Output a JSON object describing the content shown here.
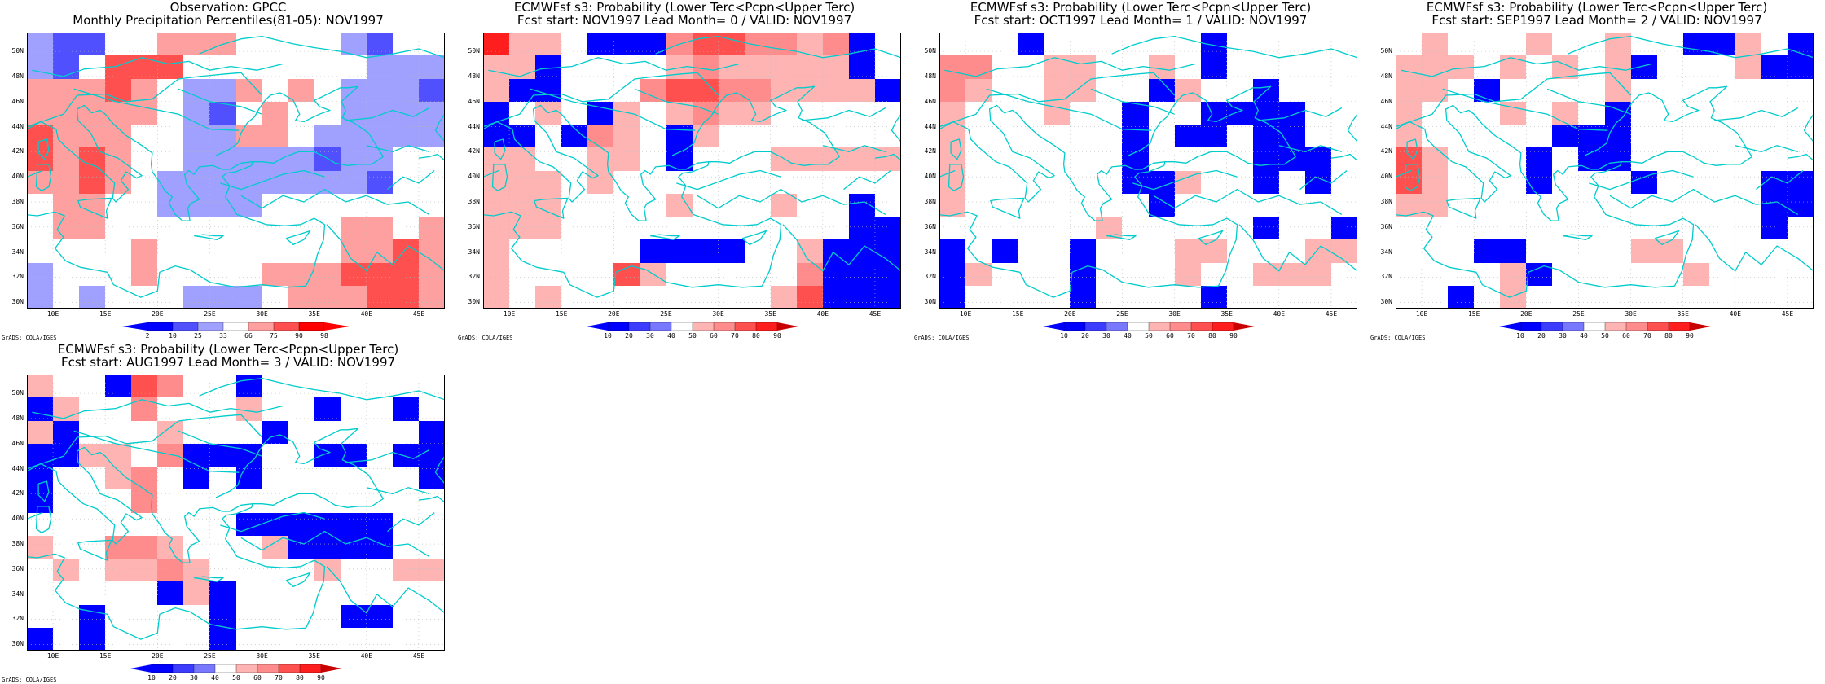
{
  "lat_ticks": [
    "30N",
    "32N",
    "34N",
    "36N",
    "38N",
    "40N",
    "42N",
    "44N",
    "46N",
    "48N",
    "50N"
  ],
  "lon_ticks": [
    "10E",
    "15E",
    "20E",
    "25E",
    "30E",
    "35E",
    "40E",
    "45E"
  ],
  "credit": "GrADS: COLA/IGES",
  "colors": {
    "coastline": "#00cccc",
    "grid": "#bbbbbb",
    "obs_palette": [
      "#0000ff",
      "#5050ff",
      "#a0a0ff",
      "#ffffff",
      "#ffa0a0",
      "#ff5050",
      "#ff0000"
    ],
    "prob_palette": [
      "#0000ff",
      "#3c3cff",
      "#7878ff",
      "#ffffff",
      "#ffb4b4",
      "#ff8c8c",
      "#ff5050",
      "#ff1e1e",
      "#c80000"
    ]
  },
  "panels": [
    {
      "title_line1": "Observation: GPCC",
      "title_line2": "Monthly Precipitation Percentiles(81-05): NOV1997",
      "colorbar_labels": [
        "2",
        "10",
        "25",
        "33",
        "66",
        "75",
        "90",
        "98"
      ],
      "colorbar_type": "obs",
      "grid": [
        [
          2,
          1,
          1,
          3,
          3,
          4,
          4,
          4,
          3,
          3,
          3,
          3,
          2,
          1,
          3,
          3
        ],
        [
          2,
          1,
          3,
          5,
          5,
          5,
          3,
          3,
          3,
          3,
          3,
          3,
          3,
          2,
          2,
          2
        ],
        [
          4,
          4,
          4,
          5,
          4,
          3,
          2,
          2,
          4,
          3,
          4,
          3,
          2,
          2,
          2,
          1
        ],
        [
          4,
          4,
          4,
          4,
          4,
          3,
          2,
          1,
          3,
          4,
          3,
          3,
          2,
          2,
          2,
          2
        ],
        [
          5,
          4,
          4,
          4,
          3,
          3,
          2,
          2,
          4,
          4,
          3,
          2,
          2,
          2,
          2,
          2
        ],
        [
          5,
          4,
          5,
          4,
          3,
          3,
          2,
          2,
          2,
          2,
          2,
          1,
          2,
          2,
          3,
          3
        ],
        [
          4,
          4,
          5,
          4,
          3,
          2,
          2,
          2,
          2,
          2,
          2,
          2,
          2,
          1,
          3,
          3
        ],
        [
          3,
          4,
          4,
          3,
          3,
          2,
          2,
          2,
          2,
          3,
          3,
          3,
          3,
          3,
          3,
          3
        ],
        [
          3,
          4,
          4,
          3,
          3,
          3,
          3,
          3,
          3,
          3,
          3,
          3,
          4,
          4,
          3,
          4
        ],
        [
          3,
          3,
          3,
          3,
          4,
          3,
          3,
          3,
          3,
          3,
          3,
          3,
          4,
          4,
          5,
          4
        ],
        [
          2,
          3,
          3,
          3,
          4,
          3,
          3,
          3,
          3,
          4,
          4,
          4,
          5,
          5,
          5,
          4
        ],
        [
          2,
          3,
          2,
          3,
          3,
          3,
          2,
          2,
          2,
          3,
          4,
          4,
          4,
          5,
          5,
          4
        ]
      ]
    },
    {
      "title_line1": "ECMWFsf s3: Probability (Lower Terc<Pcpn<Upper Terc)",
      "title_line2": "Fcst start: NOV1997  Lead Month= 0 / VALID: NOV1997",
      "colorbar_labels": [
        "10",
        "20",
        "30",
        "40",
        "50",
        "60",
        "70",
        "80",
        "90"
      ],
      "colorbar_type": "prob",
      "grid": [
        [
          7,
          4,
          4,
          3,
          0,
          0,
          0,
          5,
          6,
          6,
          5,
          5,
          4,
          5,
          0,
          3
        ],
        [
          4,
          4,
          0,
          3,
          3,
          3,
          3,
          4,
          5,
          4,
          4,
          4,
          4,
          4,
          0,
          3
        ],
        [
          4,
          0,
          0,
          3,
          3,
          3,
          5,
          6,
          6,
          5,
          5,
          4,
          4,
          4,
          4,
          0
        ],
        [
          0,
          3,
          4,
          3,
          0,
          4,
          3,
          4,
          5,
          4,
          4,
          3,
          3,
          3,
          3,
          3
        ],
        [
          0,
          0,
          3,
          0,
          5,
          4,
          3,
          0,
          4,
          3,
          3,
          3,
          3,
          3,
          3,
          3
        ],
        [
          4,
          4,
          3,
          3,
          4,
          4,
          3,
          0,
          3,
          3,
          3,
          4,
          4,
          4,
          4,
          4
        ],
        [
          4,
          4,
          4,
          3,
          4,
          3,
          3,
          3,
          3,
          3,
          3,
          3,
          3,
          3,
          3,
          3
        ],
        [
          4,
          4,
          4,
          3,
          3,
          3,
          3,
          4,
          3,
          3,
          3,
          4,
          3,
          3,
          0,
          3
        ],
        [
          4,
          4,
          4,
          3,
          3,
          3,
          3,
          3,
          3,
          3,
          3,
          3,
          3,
          3,
          0,
          0
        ],
        [
          4,
          3,
          3,
          3,
          3,
          3,
          0,
          0,
          0,
          0,
          3,
          3,
          4,
          0,
          0,
          0
        ],
        [
          4,
          3,
          3,
          3,
          3,
          6,
          4,
          3,
          3,
          3,
          3,
          3,
          5,
          0,
          0,
          0
        ],
        [
          4,
          3,
          4,
          3,
          3,
          3,
          3,
          3,
          3,
          3,
          3,
          4,
          6,
          0,
          0,
          0
        ]
      ]
    },
    {
      "title_line1": "ECMWFsf s3: Probability (Lower Terc<Pcpn<Upper Terc)",
      "title_line2": "Fcst start: OCT1997  Lead Month= 1 / VALID: NOV1997",
      "colorbar_labels": [
        "10",
        "20",
        "30",
        "40",
        "50",
        "60",
        "70",
        "80",
        "90"
      ],
      "colorbar_type": "prob",
      "grid": [
        [
          3,
          3,
          3,
          0,
          3,
          3,
          3,
          3,
          3,
          3,
          0,
          3,
          3,
          3,
          3,
          3
        ],
        [
          5,
          5,
          3,
          3,
          4,
          4,
          3,
          3,
          4,
          3,
          0,
          3,
          3,
          3,
          3,
          3
        ],
        [
          5,
          4,
          3,
          3,
          4,
          4,
          3,
          3,
          0,
          4,
          3,
          3,
          0,
          3,
          3,
          3
        ],
        [
          4,
          3,
          3,
          3,
          4,
          3,
          3,
          0,
          3,
          3,
          0,
          0,
          0,
          0,
          3,
          3
        ],
        [
          4,
          3,
          3,
          3,
          3,
          3,
          3,
          0,
          3,
          0,
          0,
          3,
          0,
          0,
          3,
          3
        ],
        [
          4,
          3,
          3,
          3,
          3,
          3,
          3,
          0,
          3,
          3,
          3,
          3,
          0,
          0,
          0,
          3
        ],
        [
          4,
          3,
          3,
          3,
          3,
          3,
          3,
          0,
          0,
          4,
          3,
          3,
          0,
          3,
          0,
          3
        ],
        [
          4,
          3,
          3,
          3,
          3,
          3,
          3,
          3,
          0,
          3,
          3,
          3,
          3,
          3,
          3,
          3
        ],
        [
          3,
          3,
          3,
          3,
          3,
          3,
          4,
          3,
          3,
          3,
          3,
          3,
          0,
          3,
          3,
          0
        ],
        [
          0,
          3,
          0,
          3,
          3,
          0,
          3,
          3,
          3,
          4,
          4,
          3,
          3,
          3,
          4,
          4
        ],
        [
          0,
          4,
          3,
          3,
          3,
          0,
          3,
          3,
          3,
          4,
          3,
          3,
          4,
          4,
          4,
          3
        ],
        [
          0,
          3,
          3,
          3,
          3,
          0,
          3,
          3,
          3,
          3,
          0,
          3,
          3,
          3,
          3,
          3
        ]
      ]
    },
    {
      "title_line1": "ECMWFsf s3: Probability (Lower Terc<Pcpn<Upper Terc)",
      "title_line2": "Fcst start: SEP1997  Lead Month= 2 / VALID: NOV1997",
      "colorbar_labels": [
        "10",
        "20",
        "30",
        "40",
        "50",
        "60",
        "70",
        "80",
        "90"
      ],
      "colorbar_type": "prob",
      "grid": [
        [
          3,
          4,
          3,
          3,
          3,
          4,
          3,
          3,
          4,
          3,
          3,
          0,
          0,
          4,
          3,
          0
        ],
        [
          4,
          4,
          4,
          3,
          4,
          3,
          4,
          3,
          4,
          0,
          3,
          3,
          3,
          4,
          0,
          0
        ],
        [
          4,
          4,
          3,
          0,
          3,
          3,
          3,
          3,
          4,
          3,
          3,
          3,
          3,
          3,
          3,
          3
        ],
        [
          4,
          3,
          3,
          3,
          4,
          3,
          4,
          3,
          0,
          3,
          3,
          3,
          3,
          3,
          3,
          3
        ],
        [
          4,
          3,
          3,
          3,
          3,
          3,
          0,
          0,
          0,
          3,
          3,
          3,
          3,
          3,
          3,
          3
        ],
        [
          6,
          4,
          3,
          3,
          3,
          0,
          3,
          0,
          0,
          3,
          3,
          3,
          3,
          3,
          3,
          3
        ],
        [
          6,
          4,
          3,
          3,
          3,
          0,
          3,
          3,
          3,
          0,
          3,
          3,
          3,
          3,
          0,
          0
        ],
        [
          4,
          4,
          3,
          3,
          3,
          3,
          3,
          3,
          3,
          3,
          3,
          3,
          3,
          3,
          0,
          0
        ],
        [
          3,
          3,
          3,
          3,
          3,
          3,
          3,
          3,
          3,
          3,
          3,
          3,
          3,
          3,
          0,
          3
        ],
        [
          3,
          3,
          3,
          0,
          0,
          3,
          3,
          3,
          3,
          4,
          4,
          3,
          3,
          3,
          3,
          3
        ],
        [
          3,
          3,
          3,
          3,
          4,
          0,
          3,
          3,
          3,
          3,
          3,
          4,
          3,
          3,
          3,
          3
        ],
        [
          3,
          3,
          0,
          3,
          4,
          3,
          3,
          3,
          3,
          3,
          3,
          3,
          3,
          3,
          3,
          3
        ]
      ]
    },
    {
      "title_line1": "ECMWFsf s3: Probability (Lower Terc<Pcpn<Upper Terc)",
      "title_line2": "Fcst start: AUG1997  Lead Month= 3 / VALID: NOV1997",
      "colorbar_labels": [
        "10",
        "20",
        "30",
        "40",
        "50",
        "60",
        "70",
        "80",
        "90"
      ],
      "colorbar_type": "prob",
      "grid": [
        [
          4,
          3,
          3,
          0,
          6,
          5,
          3,
          3,
          0,
          3,
          3,
          3,
          3,
          3,
          3,
          3
        ],
        [
          0,
          4,
          3,
          3,
          5,
          3,
          3,
          3,
          4,
          3,
          3,
          0,
          3,
          3,
          0,
          3
        ],
        [
          4,
          0,
          3,
          3,
          3,
          4,
          3,
          3,
          3,
          0,
          3,
          3,
          3,
          3,
          3,
          0
        ],
        [
          0,
          0,
          4,
          4,
          3,
          5,
          0,
          0,
          0,
          3,
          3,
          0,
          0,
          3,
          0,
          0
        ],
        [
          0,
          3,
          3,
          4,
          5,
          3,
          0,
          3,
          0,
          3,
          3,
          3,
          3,
          3,
          3,
          0
        ],
        [
          0,
          3,
          3,
          3,
          5,
          3,
          3,
          3,
          3,
          3,
          3,
          3,
          3,
          3,
          3,
          3
        ],
        [
          3,
          3,
          3,
          3,
          3,
          3,
          3,
          3,
          0,
          0,
          0,
          0,
          0,
          0,
          3,
          3
        ],
        [
          4,
          3,
          3,
          5,
          5,
          4,
          3,
          3,
          3,
          4,
          0,
          0,
          0,
          0,
          3,
          3
        ],
        [
          3,
          4,
          3,
          4,
          4,
          5,
          4,
          3,
          3,
          3,
          3,
          4,
          3,
          3,
          4,
          4
        ],
        [
          3,
          3,
          3,
          3,
          3,
          0,
          4,
          0,
          3,
          3,
          3,
          3,
          3,
          3,
          3,
          3
        ],
        [
          3,
          3,
          0,
          3,
          3,
          3,
          3,
          0,
          3,
          3,
          3,
          3,
          0,
          0,
          3,
          3
        ],
        [
          0,
          3,
          0,
          3,
          3,
          3,
          3,
          0,
          3,
          3,
          3,
          3,
          3,
          3,
          3,
          3
        ]
      ]
    }
  ]
}
